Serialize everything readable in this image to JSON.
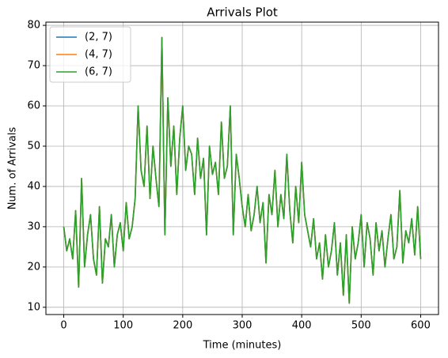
{
  "chart_data": {
    "type": "line",
    "title": "Arrivals Plot",
    "xlabel": "Time (minutes)",
    "ylabel": "Num. of Arrivals",
    "x": [
      0,
      5,
      10,
      15,
      20,
      25,
      30,
      35,
      40,
      45,
      50,
      55,
      60,
      65,
      70,
      75,
      80,
      85,
      90,
      95,
      100,
      105,
      110,
      115,
      120,
      125,
      130,
      135,
      140,
      145,
      150,
      155,
      160,
      165,
      170,
      175,
      180,
      185,
      190,
      195,
      200,
      205,
      210,
      215,
      220,
      225,
      230,
      235,
      240,
      245,
      250,
      255,
      260,
      265,
      270,
      275,
      280,
      285,
      290,
      295,
      300,
      305,
      310,
      315,
      320,
      325,
      330,
      335,
      340,
      345,
      350,
      355,
      360,
      365,
      370,
      375,
      380,
      385,
      390,
      395,
      400,
      405,
      410,
      415,
      420,
      425,
      430,
      435,
      440,
      445,
      450,
      455,
      460,
      465,
      470,
      475,
      480,
      485,
      490,
      495,
      500,
      505,
      510,
      515,
      520,
      525,
      530,
      535,
      540,
      545,
      550,
      555,
      560,
      565,
      570,
      575,
      580,
      585,
      590,
      595,
      600
    ],
    "series": [
      {
        "name": "(2, 7)",
        "color": "#1f77b4",
        "values": [
          30,
          24,
          27,
          22,
          34,
          15,
          42,
          20,
          28,
          33,
          22,
          18,
          35,
          16,
          27,
          25,
          33,
          20,
          28,
          31,
          24,
          36,
          27,
          30,
          37,
          60,
          44,
          40,
          55,
          37,
          50,
          42,
          35,
          77,
          28,
          62,
          45,
          55,
          38,
          52,
          60,
          44,
          50,
          48,
          38,
          52,
          42,
          47,
          28,
          50,
          43,
          46,
          38,
          56,
          42,
          45,
          60,
          28,
          48,
          42,
          35,
          30,
          38,
          29,
          33,
          40,
          31,
          36,
          21,
          38,
          33,
          44,
          30,
          38,
          32,
          48,
          34,
          26,
          40,
          31,
          46,
          33,
          29,
          25,
          32,
          22,
          26,
          17,
          28,
          20,
          24,
          31,
          18,
          26,
          13,
          28,
          11,
          30,
          22,
          26,
          33,
          20,
          31,
          27,
          18,
          31,
          24,
          29,
          20,
          27,
          33,
          22,
          25,
          39,
          21,
          29,
          26,
          32,
          23,
          35,
          22
        ]
      },
      {
        "name": "(4, 7)",
        "color": "#ff7f0e",
        "values": [
          30,
          24,
          27,
          22,
          34,
          15,
          42,
          20,
          28,
          33,
          22,
          18,
          35,
          16,
          27,
          25,
          33,
          20,
          28,
          31,
          24,
          36,
          27,
          30,
          37,
          60,
          44,
          40,
          55,
          37,
          50,
          42,
          35,
          77,
          28,
          62,
          45,
          55,
          38,
          52,
          60,
          44,
          50,
          48,
          38,
          52,
          42,
          47,
          28,
          50,
          43,
          46,
          38,
          56,
          42,
          45,
          60,
          28,
          48,
          42,
          35,
          30,
          38,
          29,
          33,
          40,
          31,
          36,
          21,
          38,
          33,
          44,
          30,
          38,
          32,
          48,
          34,
          26,
          40,
          31,
          46,
          33,
          29,
          25,
          32,
          22,
          26,
          17,
          28,
          20,
          24,
          31,
          18,
          26,
          13,
          28,
          11,
          30,
          22,
          26,
          33,
          20,
          31,
          27,
          18,
          31,
          24,
          29,
          20,
          27,
          33,
          22,
          25,
          39,
          21,
          29,
          26,
          32,
          23,
          35,
          22
        ]
      },
      {
        "name": "(6, 7)",
        "color": "#2ca02c",
        "values": [
          30,
          24,
          27,
          22,
          34,
          15,
          42,
          20,
          28,
          33,
          22,
          18,
          35,
          16,
          27,
          25,
          33,
          20,
          28,
          31,
          24,
          36,
          27,
          30,
          37,
          60,
          44,
          40,
          55,
          37,
          50,
          42,
          35,
          77,
          28,
          62,
          45,
          55,
          38,
          52,
          60,
          44,
          50,
          48,
          38,
          52,
          42,
          47,
          28,
          50,
          43,
          46,
          38,
          56,
          42,
          45,
          60,
          28,
          48,
          42,
          35,
          30,
          38,
          29,
          33,
          40,
          31,
          36,
          21,
          38,
          33,
          44,
          30,
          38,
          32,
          48,
          34,
          26,
          40,
          31,
          46,
          33,
          29,
          25,
          32,
          22,
          26,
          17,
          28,
          20,
          24,
          31,
          18,
          26,
          13,
          28,
          11,
          30,
          22,
          26,
          33,
          20,
          31,
          27,
          18,
          31,
          24,
          29,
          20,
          27,
          33,
          22,
          25,
          39,
          21,
          29,
          26,
          32,
          23,
          35,
          22
        ]
      }
    ],
    "xlim": [
      -30,
      630
    ],
    "xticks": [
      0,
      100,
      200,
      300,
      400,
      500,
      600
    ],
    "ylim": [
      8.2,
      80.8
    ],
    "yticks": [
      10,
      20,
      30,
      40,
      50,
      60,
      70,
      80
    ],
    "grid": true,
    "legend": "upper left"
  }
}
